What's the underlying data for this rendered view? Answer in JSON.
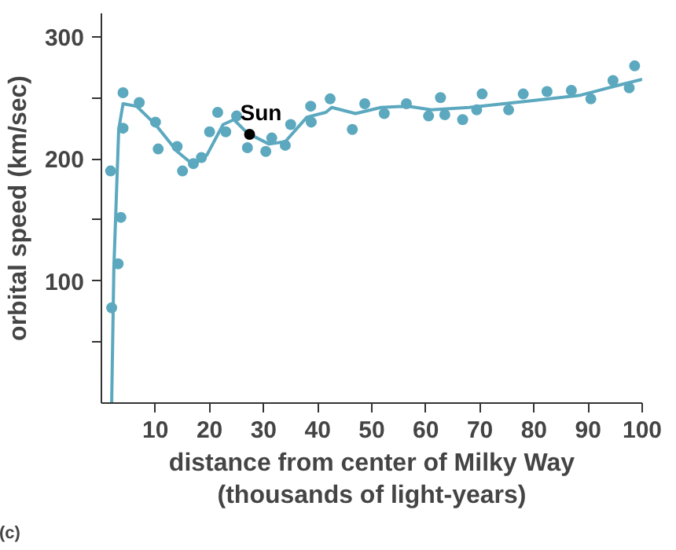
{
  "chart_data": {
    "type": "scatter",
    "xlabel": "distance from center of Milky Way\n(thousands of light-years)",
    "ylabel": "orbital speed (km/sec)",
    "xlim": [
      0,
      100
    ],
    "ylim": [
      0,
      319
    ],
    "xticks": [
      10,
      20,
      30,
      40,
      50,
      60,
      70,
      80,
      90,
      100
    ],
    "yticks": [
      {
        "value": 50,
        "label": null
      },
      100,
      {
        "value": 150,
        "label": null
      },
      200,
      {
        "value": 250,
        "label": null
      },
      300
    ],
    "grid": false,
    "marker": "circle",
    "annotations": [
      "(c)"
    ],
    "series": [
      {
        "color": "#5ba8bf",
        "x": [
          1.7,
          1.9,
          3.1,
          3.6,
          4,
          4,
          7,
          10,
          10.5,
          14,
          15,
          17,
          18.5,
          20,
          21.5,
          23,
          25,
          27,
          30.4,
          31.5,
          34,
          35,
          38.7,
          38.8,
          42.3,
          46.4,
          48.7,
          52.3,
          56.4,
          60.5,
          62.7,
          63.5,
          66.8,
          69.4,
          70.4,
          75.3,
          78,
          82.4,
          86.9,
          90.5,
          94.6,
          97.6,
          98.6
        ],
        "values": [
          190,
          78,
          114,
          152,
          225,
          254,
          246,
          230,
          208,
          210,
          190,
          196,
          201,
          222,
          238,
          222,
          235,
          209,
          206,
          217,
          211,
          228,
          243,
          230,
          249,
          224,
          245,
          237,
          245,
          235,
          250,
          236,
          232,
          240,
          253,
          240,
          253,
          255,
          256,
          249,
          264,
          258,
          276
        ]
      },
      {
        "type": "line",
        "color": "#5ba8bf",
        "marker": "none",
        "x": [
          1.9,
          2.3,
          3.2,
          4,
          6.5,
          10,
          14,
          17,
          19.5,
          22.5,
          24.5,
          27,
          31,
          34,
          38,
          41.5,
          42.6,
          47,
          51.7,
          56.7,
          61,
          68,
          78.5,
          88.6,
          94.6,
          100
        ],
        "values": [
          0,
          110,
          224,
          245,
          243,
          228,
          206,
          195,
          203,
          228,
          232,
          221,
          212,
          214,
          234,
          238,
          242,
          237,
          242,
          243,
          240,
          242,
          247,
          252,
          259,
          265
        ]
      },
      {
        "name": "Sun",
        "color": "#000000",
        "x": [
          27.4
        ],
        "values": [
          220
        ]
      }
    ]
  }
}
